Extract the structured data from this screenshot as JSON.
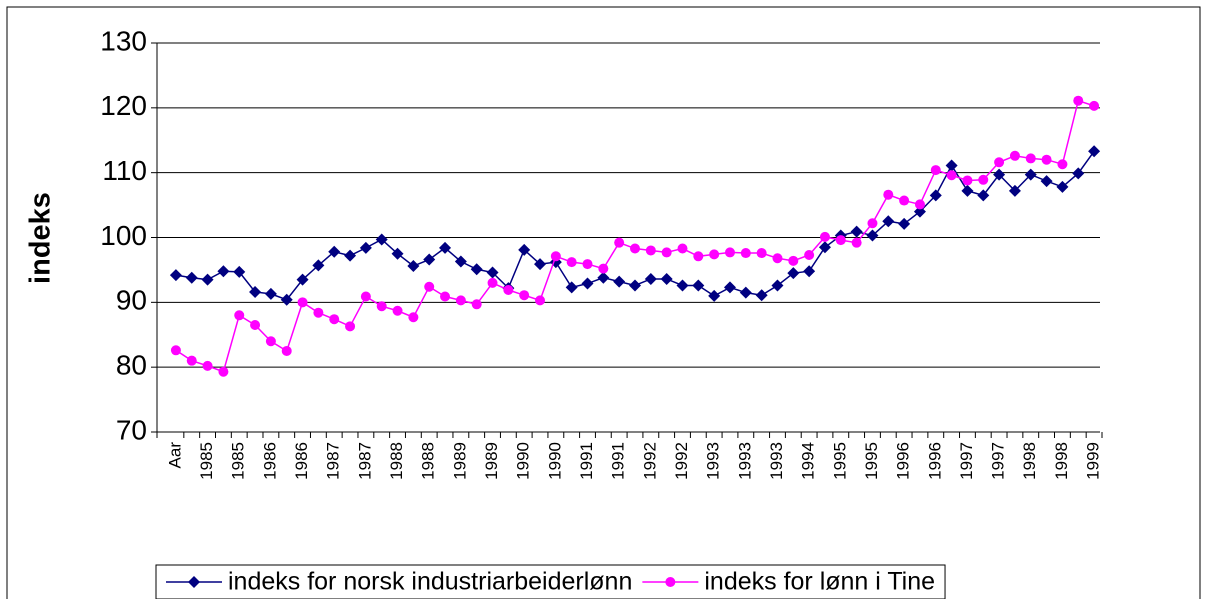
{
  "chart_data": {
    "type": "line",
    "ylabel": "indeks",
    "categories": [
      "Aar",
      null,
      "1985",
      null,
      "1985",
      null,
      "1986",
      null,
      "1986",
      null,
      "1987",
      null,
      "1987",
      null,
      "1988",
      null,
      "1988",
      null,
      "1989",
      null,
      "1989",
      null,
      "1990",
      null,
      "1990",
      null,
      "1991",
      null,
      "1991",
      null,
      "1992",
      null,
      "1992",
      null,
      "1993",
      null,
      "1993",
      null,
      "1993",
      null,
      "1994",
      null,
      "1995",
      null,
      "1995",
      null,
      "1996",
      null,
      "1996",
      null,
      "1997",
      null,
      "1997",
      null,
      "1998",
      null,
      "1998",
      null,
      "1999"
    ],
    "series": [
      {
        "name": "indeks for norsk industriarbeiderlønn",
        "color": "#000080",
        "marker": "diamond",
        "values": [
          94.2,
          93.8,
          93.5,
          94.8,
          94.7,
          91.6,
          91.3,
          90.4,
          93.5,
          95.7,
          97.8,
          97.2,
          98.4,
          99.7,
          97.5,
          95.6,
          96.6,
          98.4,
          96.3,
          95.1,
          94.6,
          92.2,
          98.1,
          95.9,
          96.2,
          92.3,
          92.9,
          93.8,
          93.2,
          92.6,
          93.6,
          93.6,
          92.6,
          92.6,
          91.0,
          92.3,
          91.5,
          91.1,
          92.6,
          94.5,
          94.8,
          98.5,
          100.3,
          100.9,
          100.3,
          102.5,
          102.1,
          104.0,
          106.5,
          111.1,
          107.2,
          106.5,
          109.7,
          107.2,
          109.7,
          108.7,
          107.8,
          109.9,
          113.3
        ]
      },
      {
        "name": "indeks for lønn i Tine",
        "color": "#ff00ff",
        "marker": "circle",
        "values": [
          82.6,
          81.0,
          80.2,
          79.3,
          88.0,
          86.5,
          84.0,
          82.5,
          90.0,
          88.4,
          87.4,
          86.3,
          90.9,
          89.4,
          88.7,
          87.7,
          92.4,
          90.9,
          90.3,
          89.7,
          93.0,
          91.9,
          91.1,
          90.3,
          97.1,
          96.2,
          95.9,
          95.2,
          99.2,
          98.3,
          98.0,
          97.7,
          98.3,
          97.1,
          97.4,
          97.7,
          97.6,
          97.6,
          96.8,
          96.4,
          97.3,
          100.1,
          99.6,
          99.2,
          102.2,
          106.6,
          105.7,
          105.1,
          110.4,
          109.6,
          108.8,
          108.9,
          111.6,
          112.6,
          112.2,
          112.0,
          111.3,
          121.1,
          120.3
        ]
      }
    ],
    "ylim": [
      70,
      130
    ],
    "yticks": [
      70,
      80,
      90,
      100,
      110,
      120,
      130
    ],
    "grid": true,
    "legend": "bottom"
  }
}
